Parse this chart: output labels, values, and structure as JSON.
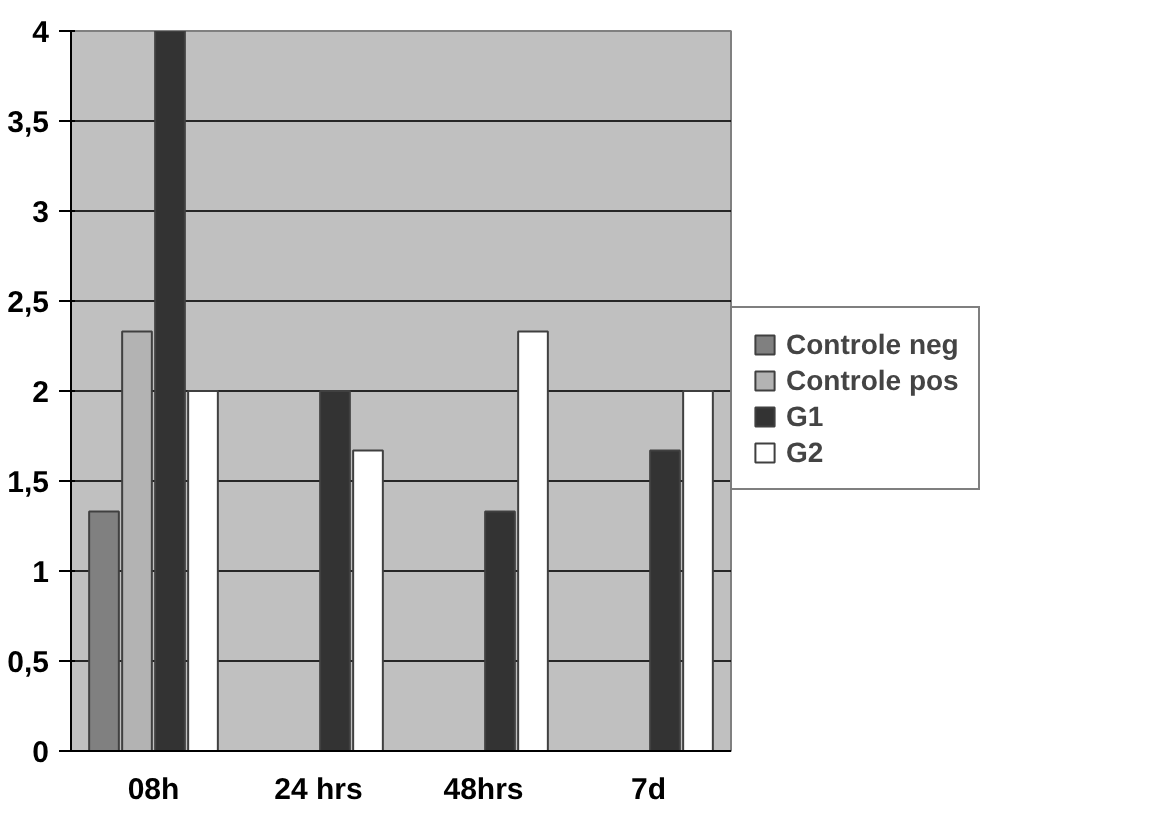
{
  "chart_data": {
    "type": "bar",
    "categories": [
      "08h",
      "24 hrs",
      "48hrs",
      "7d"
    ],
    "series": [
      {
        "name": "Controle neg",
        "color": "#808080",
        "values": [
          1.33,
          0,
          0,
          0
        ]
      },
      {
        "name": "Controle pos",
        "color": "#b3b3b3",
        "values": [
          2.33,
          0,
          0,
          0
        ]
      },
      {
        "name": "G1",
        "color": "#333333",
        "values": [
          4,
          2,
          1.33,
          1.67
        ]
      },
      {
        "name": "G2",
        "color": "#ffffff",
        "values": [
          2,
          1.67,
          2.33,
          2
        ]
      }
    ],
    "ylim": [
      0,
      4
    ],
    "yticks": [
      0,
      {
        "value": 0.5,
        "label": "0,5"
      },
      1,
      {
        "value": 1.5,
        "label": "1,5"
      },
      2,
      {
        "value": 2.5,
        "label": "2,5"
      },
      3,
      {
        "value": 3.5,
        "label": "3,5"
      },
      4
    ],
    "grid": "y",
    "legend": "right"
  }
}
